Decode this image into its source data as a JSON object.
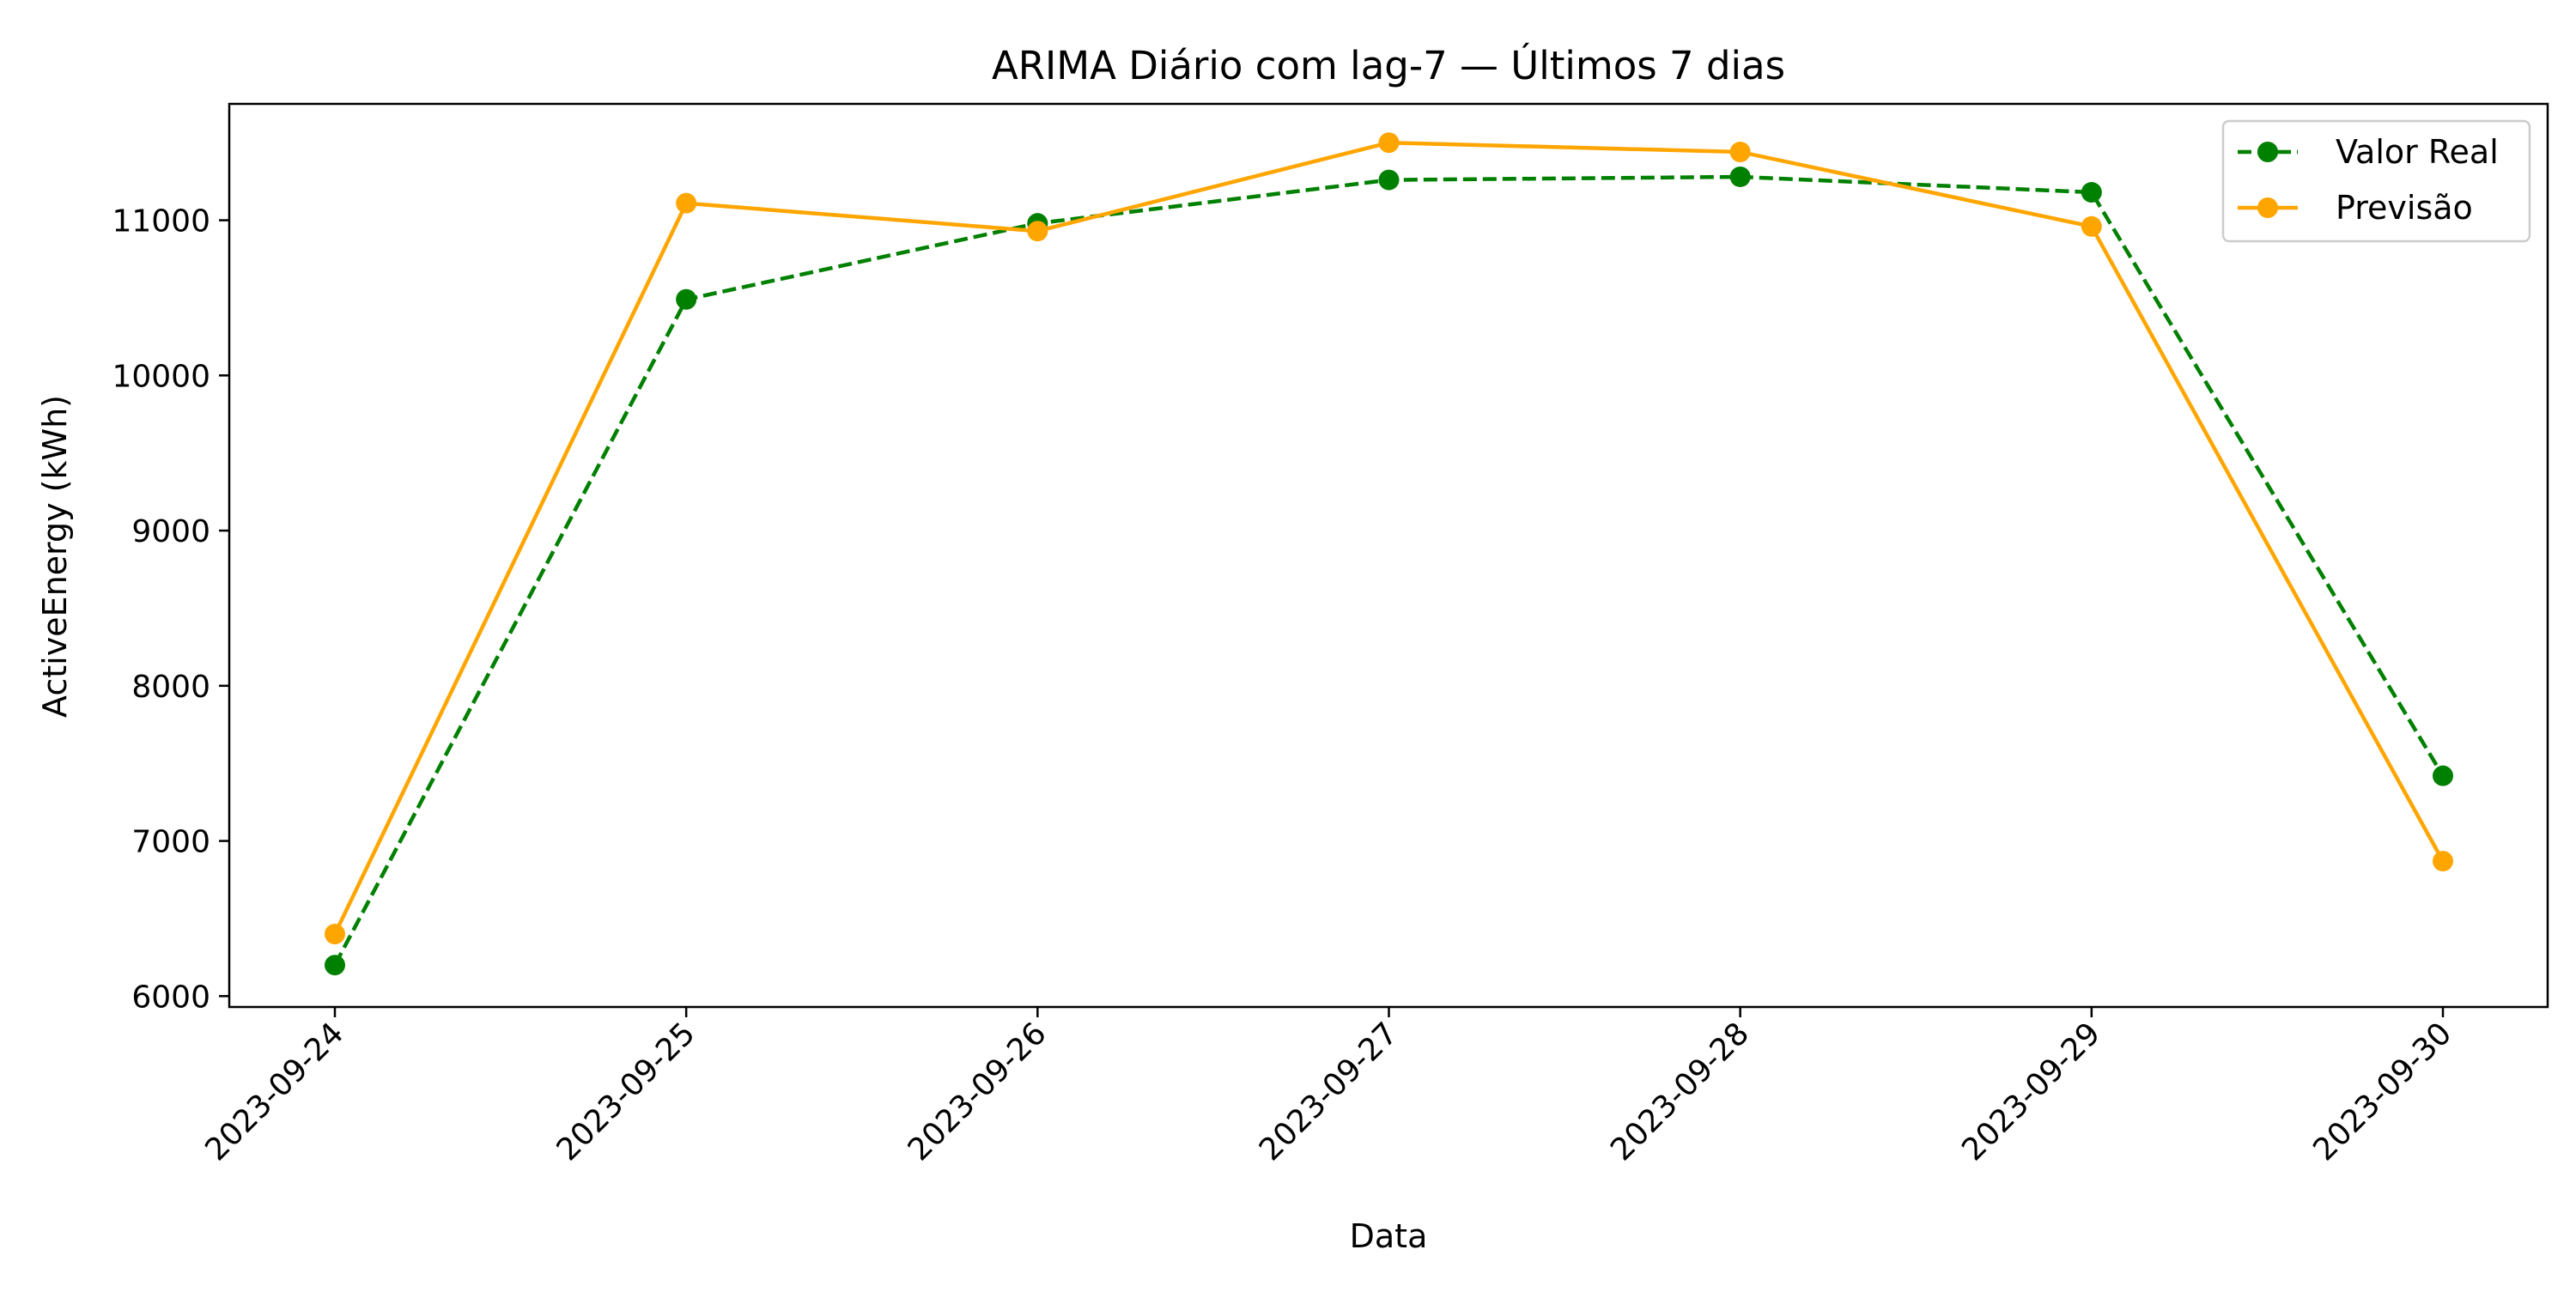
{
  "chart_data": {
    "type": "line",
    "title": "ARIMA Diário com lag-7 — Últimos 7 dias",
    "xlabel": "Data",
    "ylabel": "ActiveEnergy (kWh)",
    "x": [
      "2023-09-24",
      "2023-09-25",
      "2023-09-26",
      "2023-09-27",
      "2023-09-28",
      "2023-09-29",
      "2023-09-30"
    ],
    "ylim": [
      5930,
      11750
    ],
    "yticks": [
      6000,
      7000,
      8000,
      9000,
      10000,
      11000
    ],
    "grid": false,
    "legend_position": "upper right",
    "series": [
      {
        "name": "Valor Real",
        "color": "#008000",
        "line_style": "dashed",
        "marker": "circle",
        "values": [
          6200,
          10490,
          10980,
          11260,
          11280,
          11180,
          7420
        ]
      },
      {
        "name": "Previsão",
        "color": "#FFA500",
        "line_style": "solid",
        "marker": "circle",
        "values": [
          6400,
          11110,
          10930,
          11500,
          11440,
          10960,
          6870
        ]
      }
    ]
  }
}
